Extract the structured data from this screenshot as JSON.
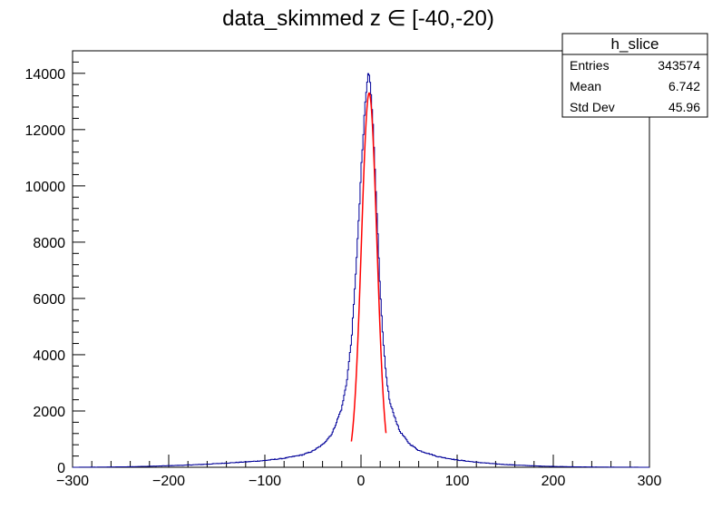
{
  "chart_data": {
    "type": "histogram",
    "title": "data_skimmed z  ∈ [-40,-20)",
    "xlim": [
      -300,
      300
    ],
    "ylim": [
      0,
      14800
    ],
    "x_ticks": [
      -300,
      -200,
      -100,
      0,
      100,
      200,
      300
    ],
    "x_tick_labels": [
      "−300",
      "−200",
      "−100",
      "0",
      "100",
      "200",
      "300"
    ],
    "y_ticks": [
      0,
      2000,
      4000,
      6000,
      8000,
      10000,
      12000,
      14000
    ],
    "y_tick_labels": [
      "0",
      "2000",
      "4000",
      "6000",
      "8000",
      "10000",
      "12000",
      "14000"
    ],
    "grid": false,
    "histogram_color": "#000099",
    "fit_color": "#ff0000",
    "histogram_points": [
      [
        -300,
        0
      ],
      [
        -280,
        5
      ],
      [
        -260,
        10
      ],
      [
        -240,
        20
      ],
      [
        -220,
        35
      ],
      [
        -200,
        55
      ],
      [
        -180,
        80
      ],
      [
        -160,
        110
      ],
      [
        -140,
        150
      ],
      [
        -120,
        190
      ],
      [
        -100,
        240
      ],
      [
        -80,
        320
      ],
      [
        -60,
        450
      ],
      [
        -50,
        580
      ],
      [
        -40,
        800
      ],
      [
        -30,
        1200
      ],
      [
        -20,
        2100
      ],
      [
        -15,
        3000
      ],
      [
        -10,
        4500
      ],
      [
        -7,
        6000
      ],
      [
        -4,
        7800
      ],
      [
        -2,
        9000
      ],
      [
        0,
        10500
      ],
      [
        2,
        11500
      ],
      [
        4,
        12800
      ],
      [
        6,
        13500
      ],
      [
        8,
        14100
      ],
      [
        10,
        13600
      ],
      [
        12,
        12500
      ],
      [
        14,
        11000
      ],
      [
        16,
        9500
      ],
      [
        18,
        7800
      ],
      [
        20,
        6200
      ],
      [
        23,
        4500
      ],
      [
        26,
        3300
      ],
      [
        30,
        2300
      ],
      [
        40,
        1300
      ],
      [
        50,
        850
      ],
      [
        60,
        600
      ],
      [
        80,
        380
      ],
      [
        100,
        260
      ],
      [
        120,
        180
      ],
      [
        140,
        120
      ],
      [
        160,
        80
      ],
      [
        180,
        50
      ],
      [
        200,
        30
      ],
      [
        220,
        18
      ],
      [
        240,
        10
      ],
      [
        260,
        5
      ],
      [
        280,
        3
      ],
      [
        300,
        0
      ]
    ],
    "fit_range": [
      -10,
      26
    ],
    "fit_peak": {
      "mean": 8.5,
      "amplitude": 13300,
      "sigma": 8.0
    },
    "stats_box": {
      "title": "h_slice",
      "rows": [
        {
          "label": "Entries",
          "value": "343574"
        },
        {
          "label": "Mean",
          "value": "6.742"
        },
        {
          "label": "Std Dev",
          "value": "45.96"
        }
      ]
    }
  }
}
